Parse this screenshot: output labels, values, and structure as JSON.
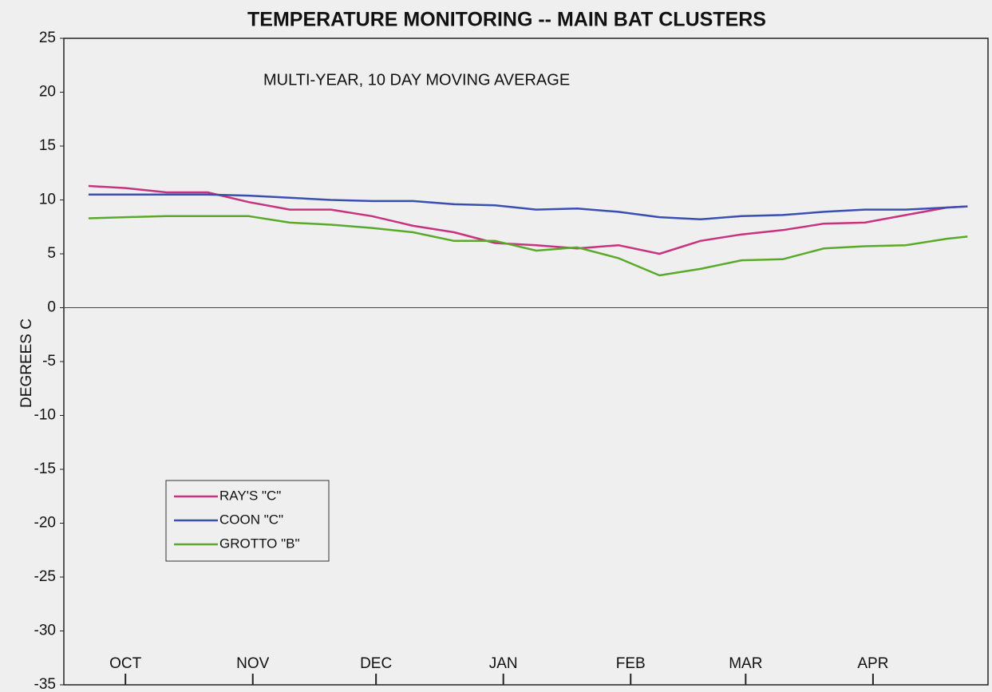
{
  "chart_data": {
    "type": "line",
    "title": "TEMPERATURE MONITORING -- MAIN BAT CLUSTERS",
    "subtitle": "MULTI-YEAR, 10 DAY MOVING AVERAGE",
    "y_label": "DEGREES C",
    "x": [
      -9,
      0,
      10,
      20,
      30,
      40,
      50,
      60,
      70,
      80,
      90,
      100,
      110,
      120,
      130,
      140,
      150,
      160,
      170,
      180,
      190,
      200,
      205
    ],
    "series": [
      {
        "name": "RAY'S \"C\"",
        "color": "#c8327f",
        "values": [
          11.3,
          11.1,
          10.7,
          10.7,
          9.8,
          9.1,
          9.1,
          8.5,
          7.6,
          7.0,
          6.0,
          5.8,
          5.5,
          5.8,
          5.0,
          6.2,
          6.8,
          7.2,
          7.8,
          7.9,
          8.6,
          9.3,
          9.4
        ]
      },
      {
        "name": "COON \"C\"",
        "color": "#3a4fb0",
        "values": [
          10.5,
          10.5,
          10.5,
          10.5,
          10.4,
          10.2,
          10.0,
          9.9,
          9.9,
          9.6,
          9.5,
          9.1,
          9.2,
          8.9,
          8.4,
          8.2,
          8.5,
          8.6,
          8.9,
          9.1,
          9.1,
          9.3,
          9.4
        ]
      },
      {
        "name": "GROTTO \"B\"",
        "color": "#5aaa2a",
        "values": [
          8.3,
          8.4,
          8.5,
          8.5,
          8.5,
          7.9,
          7.7,
          7.4,
          7.0,
          6.2,
          6.2,
          5.3,
          5.6,
          4.6,
          3.0,
          3.6,
          4.4,
          4.5,
          5.5,
          5.7,
          5.8,
          6.4,
          6.6
        ]
      }
    ],
    "xlim": [
      -15,
      210
    ],
    "xticks": [
      {
        "value": 0,
        "label": "OCT"
      },
      {
        "value": 31,
        "label": "NOV"
      },
      {
        "value": 61,
        "label": "DEC"
      },
      {
        "value": 92,
        "label": "JAN"
      },
      {
        "value": 123,
        "label": "FEB"
      },
      {
        "value": 151,
        "label": "MAR"
      },
      {
        "value": 182,
        "label": "APR"
      }
    ],
    "ylim": [
      -35,
      25
    ],
    "yticks": [
      25,
      20,
      15,
      10,
      5,
      0,
      -5,
      -10,
      -15,
      -20,
      -25,
      -30,
      -35
    ],
    "legend": "lower left"
  }
}
